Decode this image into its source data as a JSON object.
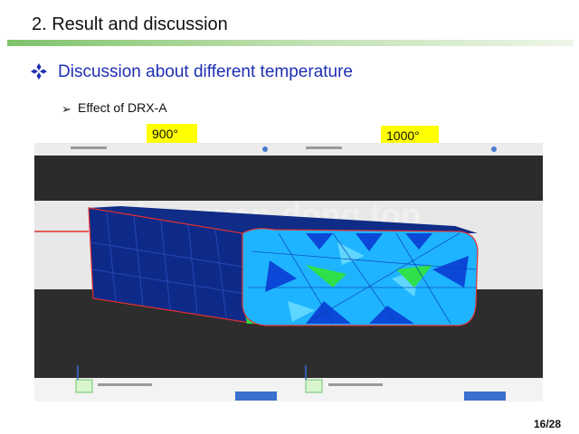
{
  "slide": {
    "title": "2. Result and discussion",
    "section_heading": "Discussion about different temperature",
    "sub_heading": "Effect of DRX-A",
    "page_number": "16/28"
  },
  "figure": {
    "label_left": "900°",
    "label_right": "1000°",
    "watermark": "zhuanyan-dong.top"
  },
  "colors": {
    "title_rule": "#7fc36b",
    "heading": "#1f2fb3",
    "label_bg": "#ffff00",
    "mesh_dark_blue": "#0e2a88",
    "mesh_cyan": "#1fb4ff",
    "mesh_green": "#2fe04a",
    "outline_red": "#e23030"
  },
  "icons": {
    "bullet": "diamond-bullet-icon",
    "sub_bullet": "arrow-bullet-icon"
  }
}
